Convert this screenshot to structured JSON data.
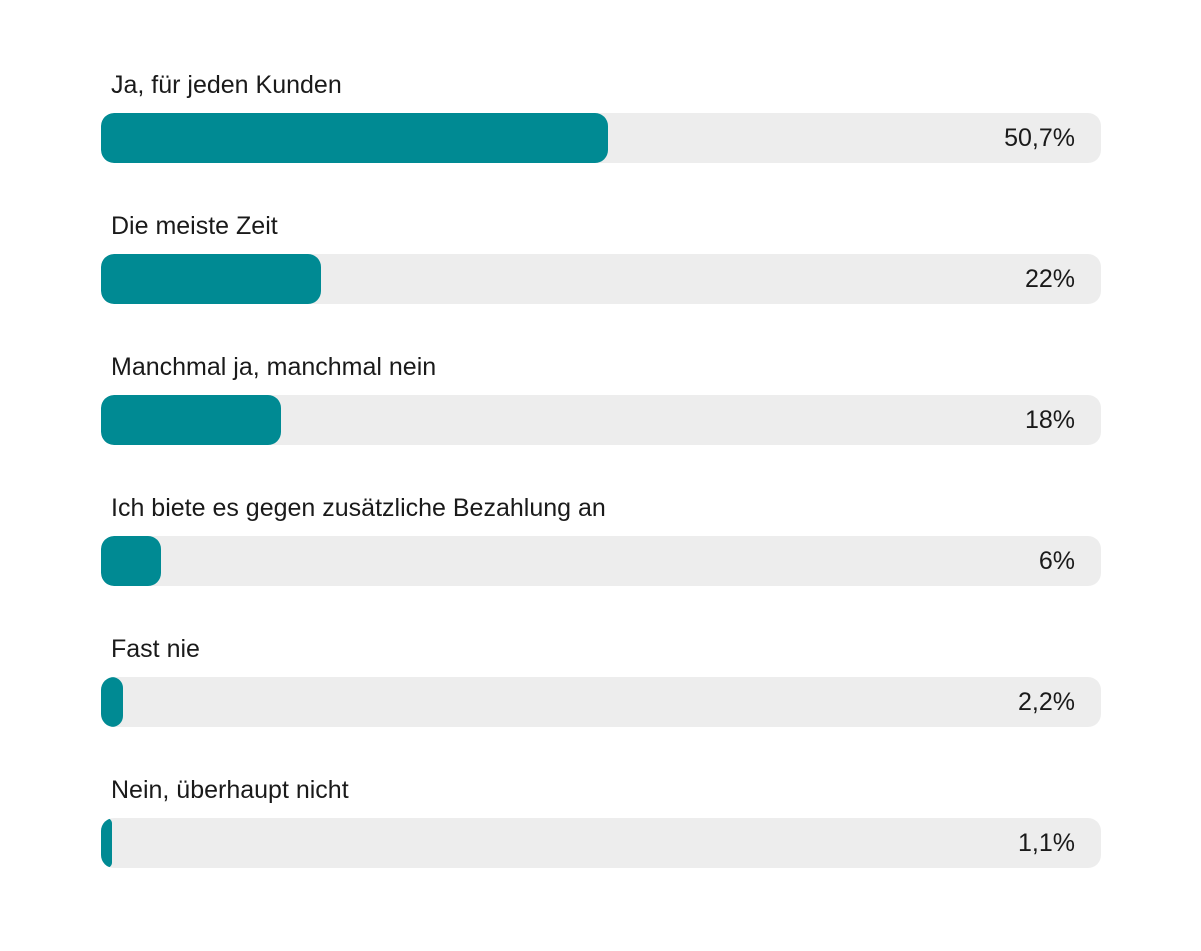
{
  "chart_data": {
    "type": "bar",
    "orientation": "horizontal",
    "categories": [
      "Ja, für jeden Kunden",
      "Die meiste Zeit",
      "Manchmal ja, manchmal nein",
      "Ich biete es gegen zusätzliche Bezahlung an",
      "Fast nie",
      "Nein, überhaupt nicht"
    ],
    "values": [
      50.7,
      22,
      18,
      6,
      2.2,
      1.1
    ],
    "value_labels": [
      "50,7%",
      "22%",
      "18%",
      "6%",
      "2,2%",
      "1,1%"
    ],
    "xlim": [
      0,
      100
    ],
    "grid": false,
    "legend": "none",
    "colors": {
      "bar": "#008a93",
      "track": "#ededed",
      "text": "#1a1a1a"
    }
  }
}
